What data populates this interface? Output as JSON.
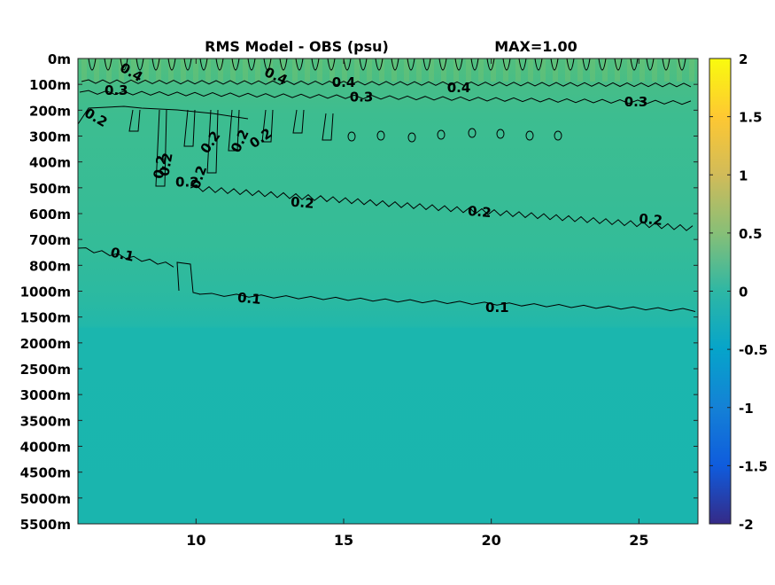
{
  "chart_data": {
    "type": "heatmap",
    "title": "RMS Model - OBS (psu)",
    "annotation": "MAX=1.00",
    "xlabel": "",
    "ylabel": "",
    "xlim": [
      6,
      27
    ],
    "x_ticks": [
      10,
      15,
      20,
      25
    ],
    "y_tick_labels": [
      "0m",
      "100m",
      "200m",
      "300m",
      "400m",
      "500m",
      "600m",
      "700m",
      "800m",
      "1000m",
      "1500m",
      "2000m",
      "2500m",
      "3000m",
      "3500m",
      "4000m",
      "4500m",
      "5000m",
      "5500m"
    ],
    "colorbar": {
      "limits": [
        -2,
        2
      ],
      "ticks": [
        2,
        1.5,
        1,
        0.5,
        0,
        -0.5,
        -1,
        -1.5,
        -2
      ],
      "tick_labels": [
        "2",
        "1.5",
        "1",
        "0.5",
        "0",
        "-0.5",
        "-1",
        "-1.5",
        "-2"
      ],
      "colormap": "parula"
    },
    "depth_value_profile": [
      {
        "depth": "0m",
        "value": 0.5
      },
      {
        "depth": "100m",
        "value": 0.4
      },
      {
        "depth": "200m",
        "value": 0.3
      },
      {
        "depth": "300m",
        "value": 0.25
      },
      {
        "depth": "500m",
        "value": 0.22
      },
      {
        "depth": "700m",
        "value": 0.15
      },
      {
        "depth": "1000m",
        "value": 0.12
      },
      {
        "depth": "1500m",
        "value": 0.08
      },
      {
        "depth": "2000m",
        "value": 0.03
      },
      {
        "depth": "5500m",
        "value": 0.02
      }
    ],
    "contour_labels": [
      {
        "text": "0.4",
        "x": 7.8,
        "y_index": 0.55,
        "rotate": 30
      },
      {
        "text": "0.4",
        "x": 12.7,
        "y_index": 0.7,
        "rotate": 25
      },
      {
        "text": "0.4",
        "x": 15.0,
        "y_index": 0.95,
        "rotate": 0
      },
      {
        "text": "0.4",
        "x": 18.9,
        "y_index": 1.15,
        "rotate": 0
      },
      {
        "text": "0.3",
        "x": 7.3,
        "y_index": 1.25,
        "rotate": 0
      },
      {
        "text": "0.3",
        "x": 15.6,
        "y_index": 1.5,
        "rotate": 0
      },
      {
        "text": "0.3",
        "x": 24.9,
        "y_index": 1.7,
        "rotate": 0
      },
      {
        "text": "0.2",
        "x": 6.6,
        "y_index": 2.3,
        "rotate": 30
      },
      {
        "text": "0.2",
        "x": 10.5,
        "y_index": 3.25,
        "rotate": -55
      },
      {
        "text": "0.2",
        "x": 11.5,
        "y_index": 3.2,
        "rotate": -65
      },
      {
        "text": "0.2",
        "x": 12.2,
        "y_index": 3.1,
        "rotate": -35
      },
      {
        "text": "0.2",
        "x": 8.8,
        "y_index": 4.2,
        "rotate": -80
      },
      {
        "text": "0.2",
        "x": 9.0,
        "y_index": 4.1,
        "rotate": -80
      },
      {
        "text": "0.2",
        "x": 10.1,
        "y_index": 4.6,
        "rotate": -70
      },
      {
        "text": "0.2",
        "x": 9.7,
        "y_index": 4.8,
        "rotate": 0
      },
      {
        "text": "0.2",
        "x": 13.6,
        "y_index": 5.6,
        "rotate": 5
      },
      {
        "text": "0.2",
        "x": 19.6,
        "y_index": 5.95,
        "rotate": 5
      },
      {
        "text": "0.2",
        "x": 25.4,
        "y_index": 6.25,
        "rotate": 5
      },
      {
        "text": "0.1",
        "x": 7.5,
        "y_index": 7.6,
        "rotate": 12
      },
      {
        "text": "0.1",
        "x": 11.8,
        "y_index": 9.3,
        "rotate": 5
      },
      {
        "text": "0.1",
        "x": 20.2,
        "y_index": 9.65,
        "rotate": 0
      }
    ]
  }
}
